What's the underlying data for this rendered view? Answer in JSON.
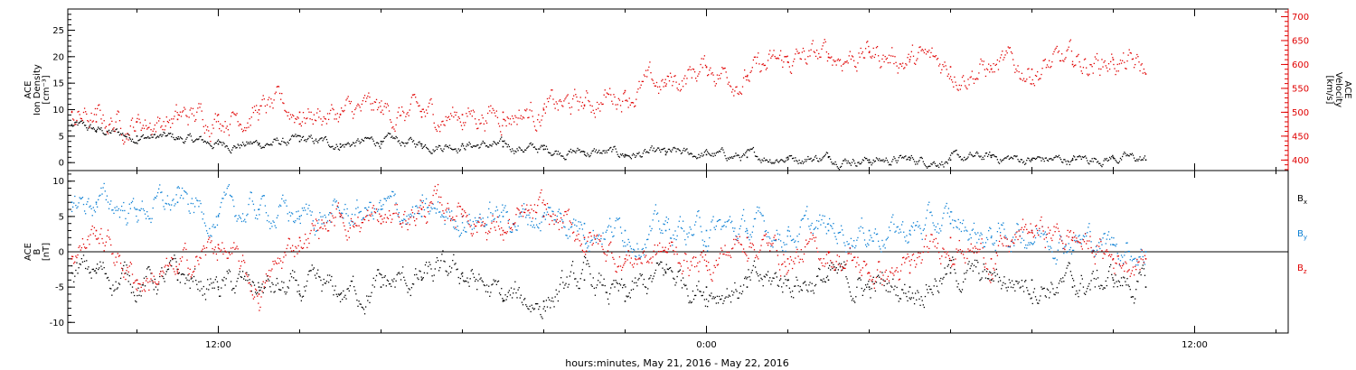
{
  "figure": {
    "xlabel": "hours:minutes, May 21, 2016 - May 22, 2016",
    "x_tick_labels": [
      "12:00",
      "0:00",
      "12:00"
    ]
  },
  "colors": {
    "black": "#000000",
    "red": "#e00000",
    "blue": "#0a7fd4"
  },
  "chart_data": [
    {
      "type": "scatter",
      "panel": "top",
      "x_unit": "hours since 0:00 May 21, 2016",
      "xlim": [
        8.3,
        38.3
      ],
      "y_left": {
        "label_lines": [
          "ACE",
          "Ion Density",
          "[cm^-3]"
        ],
        "ylim": [
          -1.5,
          29
        ],
        "ticks": [
          0,
          5,
          10,
          15,
          20,
          25
        ]
      },
      "y_right": {
        "label_lines": [
          "ACE",
          "Velocity",
          "[km/s]"
        ],
        "ylim": [
          378,
          716
        ],
        "ticks": [
          400,
          450,
          500,
          550,
          600,
          650,
          700
        ],
        "color": "#e00000"
      },
      "series": [
        {
          "name": "Ion Density",
          "axis": "left",
          "color": "#000000",
          "points": [
            [
              8.4,
              7
            ],
            [
              9,
              6
            ],
            [
              10,
              5
            ],
            [
              11,
              4.5
            ],
            [
              12,
              3.5
            ],
            [
              13,
              3.5
            ],
            [
              14,
              4
            ],
            [
              15,
              3.5
            ],
            [
              16,
              4
            ],
            [
              17,
              3.5
            ],
            [
              18,
              3.5
            ],
            [
              19,
              3
            ],
            [
              20,
              2.5
            ],
            [
              21,
              2
            ],
            [
              22,
              1.5
            ],
            [
              23,
              1.5
            ],
            [
              24,
              1.5
            ],
            [
              25,
              1
            ],
            [
              26,
              1
            ],
            [
              27,
              1
            ],
            [
              28,
              0.5
            ],
            [
              29,
              0.5
            ],
            [
              30,
              0.5
            ],
            [
              31,
              1
            ],
            [
              32,
              0.5
            ],
            [
              33,
              0.5
            ],
            [
              34,
              1
            ],
            [
              34.8,
              0.5
            ]
          ]
        },
        {
          "name": "Velocity",
          "axis": "right",
          "color": "#e00000",
          "points": [
            [
              8.4,
              500
            ],
            [
              9,
              480
            ],
            [
              10,
              480
            ],
            [
              11,
              485
            ],
            [
              12,
              495
            ],
            [
              13,
              505
            ],
            [
              14,
              500
            ],
            [
              15,
              495
            ],
            [
              16,
              500
            ],
            [
              17,
              490
            ],
            [
              18,
              495
            ],
            [
              19,
              500
            ],
            [
              20,
              505
            ],
            [
              21,
              515
            ],
            [
              22,
              545
            ],
            [
              23,
              555
            ],
            [
              24,
              595
            ],
            [
              25,
              575
            ],
            [
              26,
              605
            ],
            [
              27,
              615
            ],
            [
              28,
              625
            ],
            [
              29,
              610
            ],
            [
              30,
              595
            ],
            [
              31,
              590
            ],
            [
              32,
              590
            ],
            [
              33,
              600
            ],
            [
              34,
              610
            ],
            [
              34.8,
              580
            ]
          ]
        }
      ]
    },
    {
      "type": "scatter",
      "panel": "bottom",
      "x_unit": "hours since 0:00 May 21, 2016",
      "xlim": [
        8.3,
        38.3
      ],
      "y_left": {
        "label_lines": [
          "ACE",
          "B",
          "[nT]"
        ],
        "ylim": [
          -11.5,
          11.5
        ],
        "ticks": [
          -10,
          -5,
          0,
          5,
          10
        ]
      },
      "series": [
        {
          "name": "Bx",
          "legend_text": "B",
          "legend_sub": "x",
          "color": "#000000",
          "points": [
            [
              8.4,
              -3
            ],
            [
              9,
              -3
            ],
            [
              10,
              -4
            ],
            [
              11,
              -4
            ],
            [
              12,
              -5
            ],
            [
              13,
              -5
            ],
            [
              14,
              -6
            ],
            [
              15,
              -6
            ],
            [
              16,
              -5
            ],
            [
              17,
              -4
            ],
            [
              18,
              -3
            ],
            [
              19,
              -7
            ],
            [
              20,
              -7
            ],
            [
              21,
              -4
            ],
            [
              22,
              -7
            ],
            [
              23,
              -3
            ],
            [
              24,
              -5
            ],
            [
              25,
              -5
            ],
            [
              26,
              -4
            ],
            [
              27,
              -4
            ],
            [
              28,
              -5
            ],
            [
              29,
              -5
            ],
            [
              30,
              -3
            ],
            [
              31,
              -4
            ],
            [
              32,
              -4
            ],
            [
              33,
              -5
            ],
            [
              34,
              -4
            ],
            [
              34.8,
              -5
            ]
          ]
        },
        {
          "name": "By",
          "legend_text": "B",
          "legend_sub": "y",
          "color": "#0a7fd4",
          "points": [
            [
              8.4,
              7
            ],
            [
              9,
              7
            ],
            [
              10,
              6
            ],
            [
              11,
              7
            ],
            [
              12,
              5
            ],
            [
              13,
              6
            ],
            [
              14,
              5
            ],
            [
              15,
              5
            ],
            [
              16,
              6
            ],
            [
              17,
              5
            ],
            [
              18,
              5
            ],
            [
              19,
              5
            ],
            [
              20,
              5
            ],
            [
              21,
              4
            ],
            [
              22,
              3
            ],
            [
              23,
              3
            ],
            [
              24,
              3
            ],
            [
              25,
              3
            ],
            [
              26,
              3
            ],
            [
              27,
              3
            ],
            [
              28,
              3
            ],
            [
              29,
              3
            ],
            [
              30,
              4
            ],
            [
              31,
              2
            ],
            [
              32,
              3
            ],
            [
              33,
              2
            ],
            [
              34,
              1
            ],
            [
              34.8,
              0
            ]
          ]
        },
        {
          "name": "Bz",
          "legend_text": "B",
          "legend_sub": "z",
          "color": "#e00000",
          "points": [
            [
              8.4,
              -1
            ],
            [
              9,
              3
            ],
            [
              10,
              -4
            ],
            [
              11,
              -3
            ],
            [
              12,
              1
            ],
            [
              13,
              -6
            ],
            [
              14,
              2
            ],
            [
              15,
              5
            ],
            [
              16,
              4
            ],
            [
              17,
              6
            ],
            [
              18,
              6
            ],
            [
              19,
              3
            ],
            [
              20,
              5
            ],
            [
              21,
              2
            ],
            [
              22,
              -1
            ],
            [
              23,
              0
            ],
            [
              24,
              -2
            ],
            [
              25,
              2
            ],
            [
              26,
              -1
            ],
            [
              27,
              0
            ],
            [
              28,
              -3
            ],
            [
              29,
              -3
            ],
            [
              30,
              2
            ],
            [
              31,
              -1
            ],
            [
              32,
              3
            ],
            [
              33,
              2
            ],
            [
              34,
              -1
            ],
            [
              34.8,
              -1
            ]
          ]
        }
      ],
      "zero_line": true
    }
  ]
}
